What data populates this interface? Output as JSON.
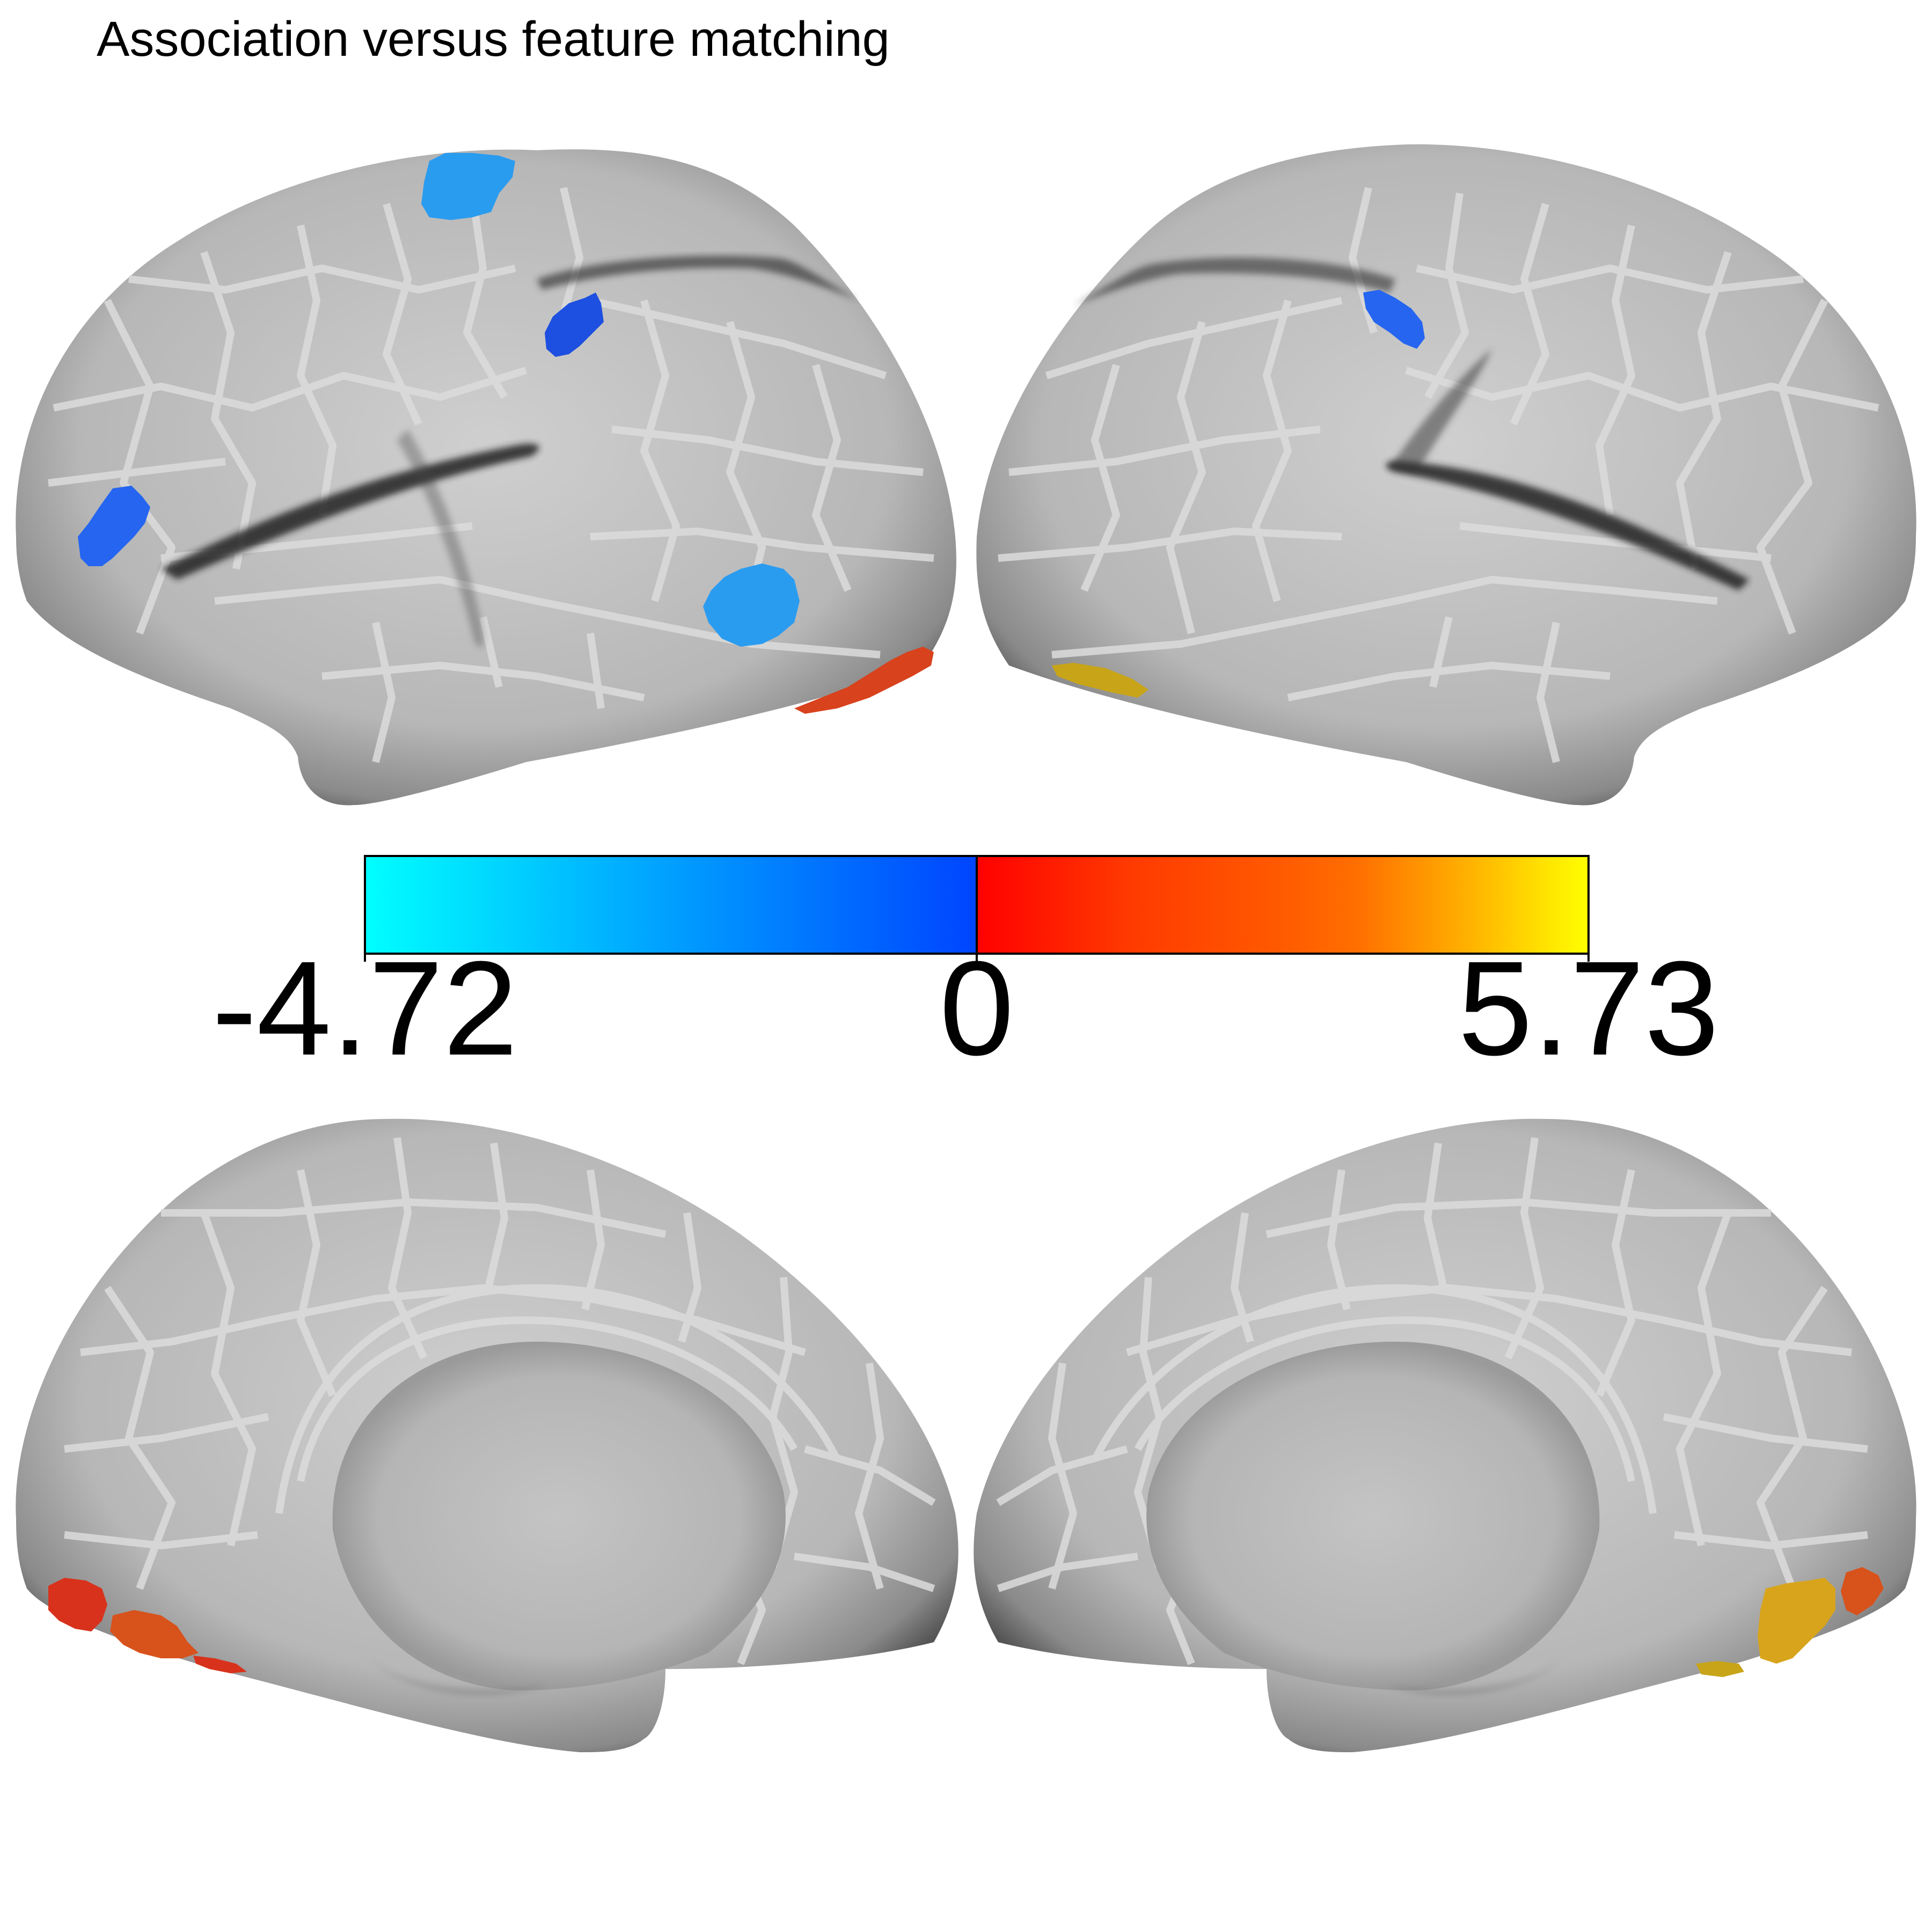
{
  "title": "Association versus feature matching",
  "colorbar": {
    "min_label": "-4.72",
    "zero_label": "0",
    "max_label": "5.73",
    "negative_colors": [
      "#00ffff",
      "#0044ff"
    ],
    "positive_colors": [
      "#ff0000",
      "#ff5500",
      "#ffff00"
    ]
  },
  "views": [
    {
      "name": "left-lateral"
    },
    {
      "name": "right-lateral"
    },
    {
      "name": "left-medial"
    },
    {
      "name": "right-medial"
    }
  ],
  "colors": {
    "surface": "#bdbdbd",
    "surface_edge": "#555555",
    "parcel_border": "#dcdcdc",
    "blue_light": "#2a9cf0",
    "blue_mid": "#2565f0",
    "blue_dark": "#1d4fe0",
    "red": "#d8321c",
    "orange_red": "#d8521c",
    "gold": "#d8a41c"
  }
}
